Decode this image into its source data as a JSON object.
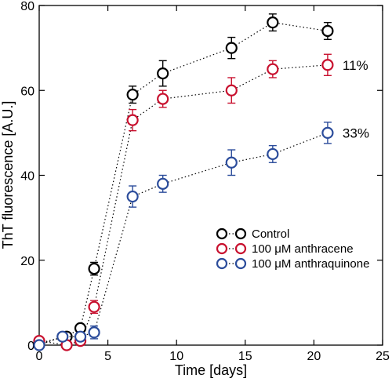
{
  "chart_data": {
    "type": "scatter",
    "xlabel": "Time [days]",
    "ylabel": "ThT fluorescence [A.U.]",
    "xlim": [
      0,
      25
    ],
    "ylim": [
      0,
      80
    ],
    "xticks": [
      "0",
      "5",
      "10",
      "15",
      "20",
      "25"
    ],
    "yticks": [
      "0",
      "20",
      "40",
      "60",
      "80"
    ],
    "grid": false,
    "legend_position": "lower-right",
    "series": [
      {
        "name": "Control",
        "color": "#000000",
        "points": [
          {
            "x": 0,
            "y": 0.5,
            "err": 0.5
          },
          {
            "x": 2,
            "y": 2,
            "err": 0.6
          },
          {
            "x": 3,
            "y": 4,
            "err": 0.8
          },
          {
            "x": 4,
            "y": 18,
            "err": 1.5
          },
          {
            "x": 6.8,
            "y": 59,
            "err": 2
          },
          {
            "x": 9,
            "y": 64,
            "err": 3
          },
          {
            "x": 14,
            "y": 70,
            "err": 2.5
          },
          {
            "x": 17,
            "y": 76,
            "err": 2
          },
          {
            "x": 21,
            "y": 74,
            "err": 2
          }
        ]
      },
      {
        "name": "100 μM anthracene",
        "color": "#c8102e",
        "points": [
          {
            "x": 0,
            "y": 1,
            "err": 0.5
          },
          {
            "x": 2,
            "y": 0,
            "err": 0.5
          },
          {
            "x": 3,
            "y": 1,
            "err": 0.6
          },
          {
            "x": 4,
            "y": 9,
            "err": 1.5
          },
          {
            "x": 6.8,
            "y": 53,
            "err": 2.5
          },
          {
            "x": 9,
            "y": 58,
            "err": 2
          },
          {
            "x": 14,
            "y": 60,
            "err": 3
          },
          {
            "x": 17,
            "y": 65,
            "err": 2
          },
          {
            "x": 21,
            "y": 66,
            "err": 2.5
          }
        ]
      },
      {
        "name": "100 μM anthraquinone",
        "color": "#2b4c9b",
        "points": [
          {
            "x": 0,
            "y": 0,
            "err": 0.5
          },
          {
            "x": 1.7,
            "y": 2,
            "err": 0.6
          },
          {
            "x": 3,
            "y": 2,
            "err": 0.6
          },
          {
            "x": 4,
            "y": 3,
            "err": 1.5
          },
          {
            "x": 6.8,
            "y": 35,
            "err": 2.5
          },
          {
            "x": 9,
            "y": 38,
            "err": 2
          },
          {
            "x": 14,
            "y": 43,
            "err": 3
          },
          {
            "x": 17,
            "y": 45,
            "err": 2
          },
          {
            "x": 21,
            "y": 50,
            "err": 2.5
          }
        ]
      }
    ],
    "annotations": [
      {
        "text": "11%",
        "x": 21,
        "y": 66
      },
      {
        "text": "33%",
        "x": 21,
        "y": 50
      }
    ]
  }
}
